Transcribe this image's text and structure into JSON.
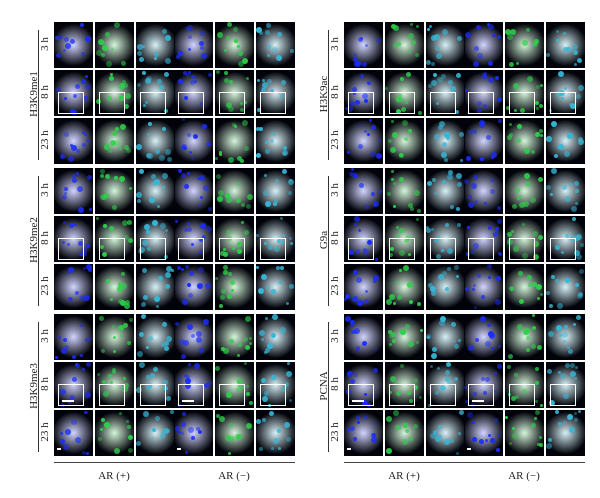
{
  "markers": [
    "H3K9me1",
    "H3K9ac",
    "H3K9me2",
    "G9a",
    "H3K9me3",
    "PCNA"
  ],
  "timepoints": [
    "3 h",
    "8 h",
    "23 h"
  ],
  "conditions": [
    "AR (+)",
    "AR (−)"
  ],
  "colors": {
    "dapi": "#1a2cff",
    "signal": "#2bd14a",
    "merge": "#35b7d8",
    "background": "#02030a"
  }
}
